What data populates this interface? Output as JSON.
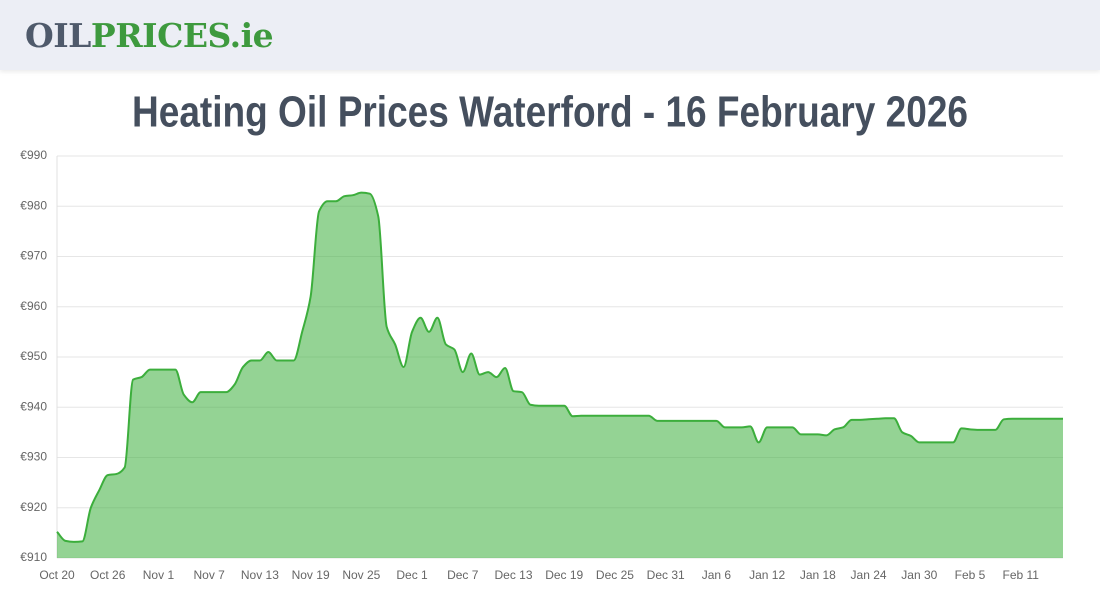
{
  "header": {
    "logo": [
      "OIL",
      "PRICES.ie"
    ]
  },
  "chart_data": {
    "type": "area",
    "title": "Heating Oil Prices Waterford - 16 February 2026",
    "categories": [
      "Oct 20",
      null,
      null,
      null,
      null,
      null,
      "Oct 26",
      null,
      null,
      null,
      null,
      null,
      "Nov 1",
      null,
      null,
      null,
      null,
      null,
      "Nov 7",
      null,
      null,
      null,
      null,
      null,
      "Nov 13",
      null,
      null,
      null,
      null,
      null,
      "Nov 19",
      null,
      null,
      null,
      null,
      null,
      "Nov 25",
      null,
      null,
      null,
      null,
      null,
      "Dec 1",
      null,
      null,
      null,
      null,
      null,
      "Dec 7",
      null,
      null,
      null,
      null,
      null,
      "Dec 13",
      null,
      null,
      null,
      null,
      null,
      "Dec 19",
      null,
      null,
      null,
      null,
      null,
      "Dec 25",
      null,
      null,
      null,
      null,
      null,
      "Dec 31",
      null,
      null,
      null,
      null,
      null,
      "Jan 6",
      null,
      null,
      null,
      null,
      null,
      "Jan 12",
      null,
      null,
      null,
      null,
      null,
      "Jan 18",
      null,
      null,
      null,
      null,
      null,
      "Jan 24",
      null,
      null,
      null,
      null,
      null,
      "Jan 30",
      null,
      null,
      null,
      null,
      null,
      "Feb 5",
      null,
      null,
      null,
      null,
      null,
      "Feb 11",
      null,
      null,
      null,
      null,
      null
    ],
    "values": [
      915.2,
      913.4,
      913.2,
      913.3,
      920,
      923.5,
      926.5,
      926.7,
      928,
      945.5,
      946,
      947.5,
      947.5,
      947.5,
      947.5,
      942.5,
      941,
      943,
      943,
      943,
      943,
      944.5,
      948,
      949.3,
      949.3,
      951,
      949.3,
      949.3,
      949.3,
      955,
      962,
      979,
      981,
      981,
      982,
      982.2,
      982.7,
      982.5,
      978,
      956,
      952.5,
      948,
      955,
      957.8,
      955,
      957.8,
      952.5,
      951.5,
      947,
      950.7,
      946.5,
      947,
      946,
      947.8,
      943.2,
      943,
      940.5,
      940.3,
      940.3,
      940.3,
      940.3,
      938.2,
      938.3,
      938.3,
      938.3,
      938.3,
      938.3,
      938.3,
      938.3,
      938.3,
      938.3,
      937.3,
      937.3,
      937.3,
      937.3,
      937.3,
      937.3,
      937.3,
      937.3,
      936,
      936,
      936,
      936.2,
      933,
      936,
      936,
      936,
      936,
      934.6,
      934.6,
      934.6,
      934.4,
      935.6,
      936,
      937.5,
      937.5,
      937.6,
      937.7,
      937.8,
      937.8,
      935,
      934.3,
      933,
      933,
      933,
      933,
      933,
      935.8,
      935.6,
      935.5,
      935.5,
      935.5,
      937.6,
      937.7,
      937.7,
      937.7,
      937.7,
      937.7,
      937.7,
      937.7
    ],
    "color": "#3cae3c",
    "ylim": [
      910,
      990
    ],
    "yticks": [
      {
        "value": 910,
        "label": "€910"
      },
      {
        "value": 920,
        "label": "€920"
      },
      {
        "value": 930,
        "label": "€930"
      },
      {
        "value": 940,
        "label": "€940"
      },
      {
        "value": 950,
        "label": "€950"
      },
      {
        "value": 960,
        "label": "€960"
      },
      {
        "value": 970,
        "label": "€970"
      },
      {
        "value": 980,
        "label": "€980"
      },
      {
        "value": 990,
        "label": "€990"
      }
    ],
    "grid": true
  }
}
